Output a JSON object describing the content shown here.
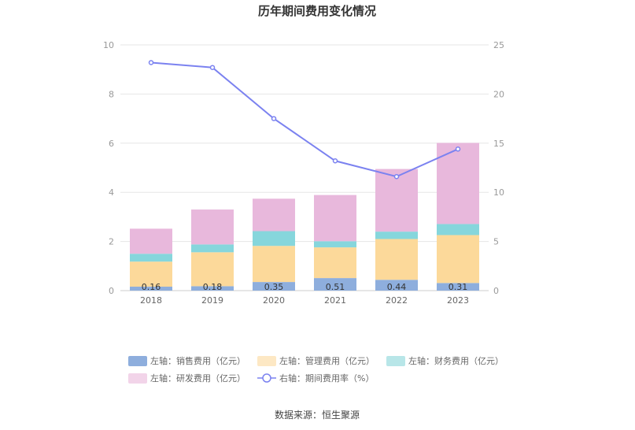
{
  "chart_data": {
    "type": "bar",
    "title": "历年期间费用变化情况",
    "categories": [
      "2018",
      "2019",
      "2020",
      "2021",
      "2022",
      "2023"
    ],
    "left_axis": {
      "ylim": [
        0,
        10
      ],
      "ticks": [
        "0",
        "2",
        "4",
        "6",
        "8",
        "10"
      ]
    },
    "right_axis": {
      "ylim": [
        0,
        25
      ],
      "ticks": [
        "0",
        "5",
        "10",
        "15",
        "20",
        "25"
      ]
    },
    "stacked": true,
    "series": [
      {
        "name": "左轴：销售费用（亿元）",
        "axis": "left",
        "kind": "bar",
        "color": "#8eaedd",
        "values": [
          0.16,
          0.18,
          0.35,
          0.51,
          0.44,
          0.31
        ],
        "labels": [
          "0.16",
          "0.18",
          "0.35",
          "0.51",
          "0.44",
          "0.31"
        ]
      },
      {
        "name": "左轴：管理费用（亿元）",
        "axis": "left",
        "kind": "bar",
        "color": "#fcd99a",
        "values": [
          1.02,
          1.38,
          1.47,
          1.25,
          1.66,
          1.95
        ]
      },
      {
        "name": "左轴：财务费用（亿元）",
        "axis": "left",
        "kind": "bar",
        "color": "#86d6dc",
        "values": [
          0.32,
          0.32,
          0.6,
          0.25,
          0.3,
          0.45
        ]
      },
      {
        "name": "左轴：研发费用（亿元）",
        "axis": "left",
        "kind": "bar",
        "color": "#e8b8dc",
        "values": [
          1.02,
          1.42,
          1.32,
          1.88,
          2.55,
          3.3
        ]
      },
      {
        "name": "右轴：期间费用率（%）",
        "axis": "right",
        "kind": "line",
        "color": "#7b82f0",
        "values": [
          23.2,
          22.7,
          17.5,
          13.2,
          11.6,
          14.4
        ]
      }
    ]
  },
  "legend_colors": [
    "#8eaedd",
    "#fde8c4",
    "#b8e6e8",
    "#f2d4e9"
  ],
  "source": "数据来源：恒生聚源"
}
